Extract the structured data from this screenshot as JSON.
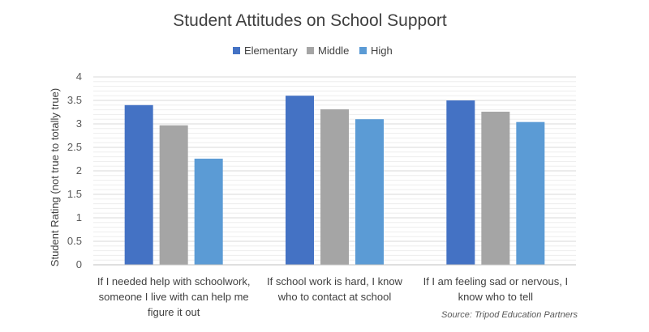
{
  "chart_data": {
    "type": "bar",
    "title": "Student Attitudes on School Support",
    "ylabel": "Student Rating (not true to totally true)",
    "ylim": [
      0,
      4
    ],
    "yticks": [
      "0",
      "0.5",
      "1",
      "1.5",
      "2",
      "2.5",
      "3",
      "3.5",
      "4"
    ],
    "grid": true,
    "legend_position": "top",
    "categories": [
      [
        "If I needed help with schoolwork,",
        "someone I live with can help me",
        "figure it out"
      ],
      [
        "If school work is hard, I know",
        "who to contact at school"
      ],
      [
        "If I am feeling sad or nervous, I",
        "know who to tell"
      ]
    ],
    "series": [
      {
        "name": "Elementary",
        "color": "#4472C4",
        "values": [
          3.4,
          3.6,
          3.5
        ]
      },
      {
        "name": "Middle",
        "color": "#A5A5A5",
        "values": [
          2.97,
          3.31,
          3.26
        ]
      },
      {
        "name": "High",
        "color": "#5B9BD5",
        "values": [
          2.26,
          3.1,
          3.04
        ]
      }
    ],
    "source": "Source: Tripod Education Partners"
  }
}
